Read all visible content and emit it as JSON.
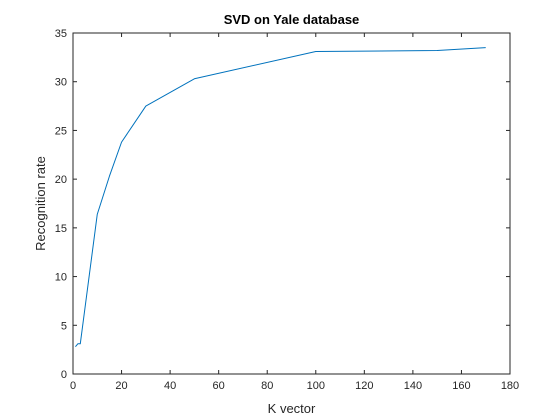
{
  "chart_data": {
    "type": "line",
    "title": "SVD on Yale database",
    "xlabel": "K vector",
    "ylabel": "Recognition rate",
    "xlim": [
      0,
      180
    ],
    "ylim": [
      0,
      35
    ],
    "xticks": [
      0,
      20,
      40,
      60,
      80,
      100,
      120,
      140,
      160,
      180
    ],
    "yticks": [
      0,
      5,
      10,
      15,
      20,
      25,
      30,
      35
    ],
    "grid": false,
    "series": [
      {
        "color": "#0072BD",
        "x": [
          1,
          2,
          3,
          10,
          15,
          20,
          30,
          50,
          100,
          150,
          170
        ],
        "y": [
          2.8,
          3.1,
          3.1,
          16.4,
          20.3,
          23.8,
          27.5,
          30.3,
          33.1,
          33.2,
          33.5
        ]
      }
    ]
  }
}
